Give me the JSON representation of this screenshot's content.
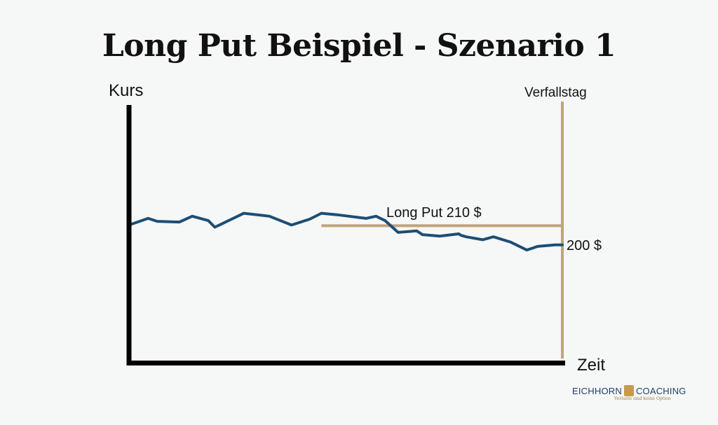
{
  "title": "Long Put Beispiel - Szenario 1",
  "colors": {
    "price_line": "#1d4e74",
    "strike_line": "#c0a47a",
    "axis": "#000000",
    "background": "#f6f7f7"
  },
  "chart_data": {
    "type": "line",
    "title": "Long Put Beispiel - Szenario 1",
    "xlabel": "Zeit",
    "ylabel": "Kurs",
    "xlim": [
      0,
      100
    ],
    "ylim": [
      0,
      350
    ],
    "grid": false,
    "series": [
      {
        "x": [
          0,
          4.4,
          6.5,
          11.6,
          14.6,
          18.3,
          19.8,
          26.5,
          32.4,
          37.5,
          41.7,
          44.4,
          48.0,
          54.7,
          57.0,
          59.1,
          62.1,
          66.4,
          67.7,
          71.8,
          76.1,
          76.6,
          77.8,
          81.6,
          84.1,
          88.0,
          91.8,
          94.3,
          98.3,
          100
        ],
        "y": [
          187,
          196,
          192,
          191,
          199,
          193,
          184,
          203,
          199,
          187,
          195,
          203,
          201,
          196,
          199,
          193,
          177,
          179,
          174,
          172,
          175,
          173,
          171,
          167,
          171,
          164,
          153,
          158,
          160,
          160
        ]
      }
    ],
    "annotations": [
      {
        "text": "Long Put 210 $",
        "y": 186,
        "x_start": 44.4,
        "x_end": 100
      },
      {
        "text": "200 $",
        "y": 160
      },
      {
        "text": "Verfallstag",
        "x": 100
      }
    ]
  },
  "logo": {
    "name_left": "EICHHORN",
    "name_right": "COACHING",
    "tagline": "Verluste sind keine Option"
  }
}
